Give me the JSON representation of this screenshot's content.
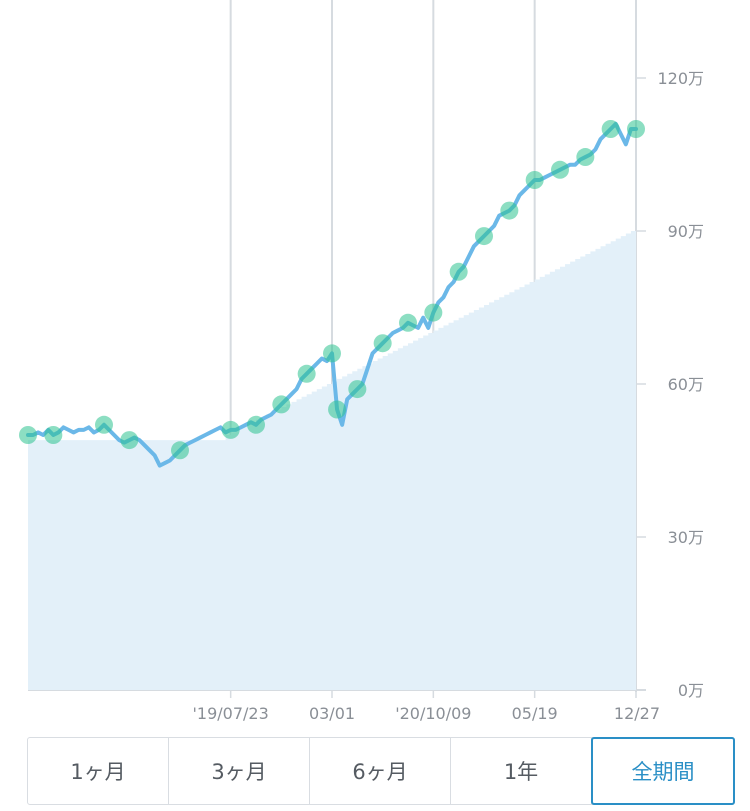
{
  "chart_data": {
    "type": "line",
    "y_unit": "万",
    "ylim": [
      0,
      120
    ],
    "y_ticks": [
      "120万",
      "90万",
      "60万",
      "30万",
      "0万"
    ],
    "y_tick_values": [
      120,
      90,
      60,
      30,
      0
    ],
    "x_ticks": [
      {
        "label": "'19/07/23",
        "index": 40
      },
      {
        "label": "03/01",
        "index": 60
      },
      {
        "label": "'20/10/09",
        "index": 80
      },
      {
        "label": "05/19",
        "index": 100
      },
      {
        "label": "12/27",
        "index": 120
      }
    ],
    "x_count": 121,
    "grid": "vertical",
    "series": [
      {
        "role": "valuation",
        "color": "#6bb8e8",
        "values": [
          50,
          50,
          50.5,
          50,
          51,
          50,
          50.5,
          51.5,
          51,
          50.5,
          51,
          51,
          51.5,
          50.5,
          51,
          52,
          51,
          50,
          49,
          48.5,
          49,
          49.5,
          49,
          48,
          47,
          46,
          44,
          44.5,
          45,
          46,
          47,
          48,
          48.5,
          49,
          49.5,
          50,
          50.5,
          51,
          51.5,
          50.5,
          51,
          51,
          51.5,
          52,
          52.5,
          52,
          53,
          53.5,
          54,
          55,
          56,
          57,
          58,
          59,
          61,
          62,
          63,
          64,
          65,
          64.5,
          66,
          55,
          52,
          57,
          58,
          59,
          60,
          63,
          66,
          67,
          68,
          69,
          70,
          70.5,
          71,
          72,
          71.5,
          71,
          73,
          71,
          74,
          76,
          77,
          79,
          80,
          82,
          83,
          85,
          87,
          88,
          89,
          90,
          91,
          93,
          93.5,
          94,
          95,
          97,
          98,
          99,
          100,
          100,
          100.5,
          101,
          101.5,
          102,
          102.5,
          103,
          103,
          104,
          104.5,
          105,
          106,
          108,
          109,
          110,
          111,
          109,
          107,
          110,
          110
        ]
      },
      {
        "role": "principal",
        "color": "#e3f0f9",
        "values": [
          49,
          49,
          49,
          49,
          49,
          49,
          49,
          49,
          49,
          49,
          49,
          49,
          49,
          49,
          49,
          49,
          49,
          49,
          49,
          49,
          49,
          49,
          49,
          49,
          49,
          49,
          49,
          49,
          49,
          49,
          49,
          49,
          49,
          49,
          49,
          49,
          49,
          49,
          49,
          50,
          50.5,
          51,
          51.5,
          52,
          52.5,
          53,
          53.5,
          54,
          54.5,
          55,
          55.5,
          56,
          56.5,
          57,
          57.5,
          58,
          58.5,
          59,
          59.5,
          60,
          60.5,
          61,
          61.5,
          62,
          62.5,
          63,
          63.5,
          64,
          64.5,
          65,
          65.5,
          66,
          66.5,
          67,
          67.5,
          68,
          68.5,
          69,
          69.5,
          70,
          70.5,
          71,
          71.5,
          72,
          72.5,
          73,
          73.5,
          74,
          74.5,
          75,
          75.5,
          76,
          76.5,
          77,
          77.5,
          78,
          78.5,
          79,
          79.5,
          80,
          80.5,
          81,
          81.5,
          82,
          82.5,
          83,
          83.5,
          84,
          84.5,
          85,
          85.5,
          86,
          86.5,
          87,
          87.5,
          88,
          88.5,
          89,
          89.5,
          90,
          80.5
        ]
      }
    ],
    "markers_color": "#2ec28f",
    "marker_indices": [
      0,
      5,
      15,
      20,
      30,
      40,
      45,
      50,
      55,
      60,
      61,
      65,
      70,
      75,
      80,
      85,
      90,
      95,
      100,
      105,
      110,
      115,
      120
    ]
  },
  "periods": [
    {
      "label": "1ヶ月"
    },
    {
      "label": "3ヶ月"
    },
    {
      "label": "6ヶ月"
    },
    {
      "label": "1年"
    },
    {
      "label": "全期間"
    }
  ],
  "active_period": 4
}
